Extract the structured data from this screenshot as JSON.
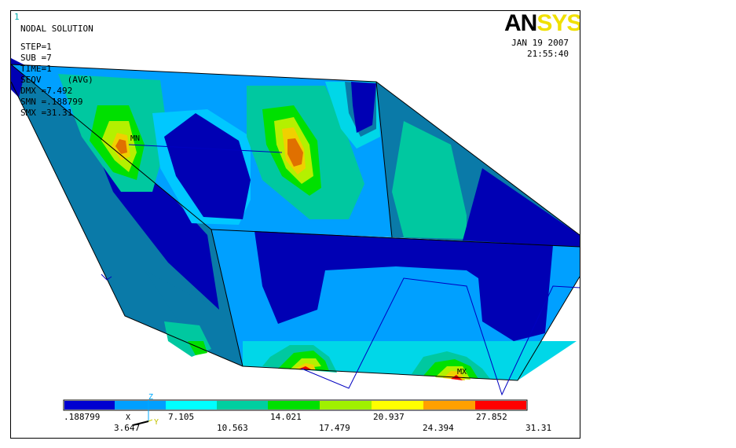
{
  "window_number": "1",
  "header": {
    "title": "NODAL SOLUTION",
    "lines": [
      "STEP=1",
      "SUB =7",
      "TIME=1",
      "SEQV     (AVG)",
      "DMX =7.492",
      "SMN =.188799",
      "SMX =31.31"
    ]
  },
  "logo": {
    "part1": "AN",
    "part2": "SYS"
  },
  "timestamp": {
    "date": "JAN 19 2007",
    "time": "21:55:40"
  },
  "markers": {
    "min": "MN",
    "max": "MX"
  },
  "triad": {
    "x": "X",
    "y": "Y",
    "z": "Z"
  },
  "legend": {
    "colors": [
      "#0000d0",
      "#009fff",
      "#00ffff",
      "#00cfa0",
      "#00e000",
      "#a0f000",
      "#ffff00",
      "#ffa000",
      "#ff0000"
    ],
    "labels_top": [
      ".188799",
      "7.105",
      "14.021",
      "20.937",
      "27.852"
    ],
    "labels_bottom": [
      "3.647",
      "10.563",
      "17.479",
      "24.394",
      "31.31"
    ]
  },
  "contour_colors": {
    "band1": "#0000b4",
    "band2": "#0a7aa8",
    "band3": "#00a0ff",
    "band4": "#00d7e8",
    "band5": "#00c8a0",
    "band6": "#00e000",
    "band7": "#b4f000",
    "band8": "#f0d000",
    "band9": "#e07000",
    "band10": "#f00000"
  }
}
